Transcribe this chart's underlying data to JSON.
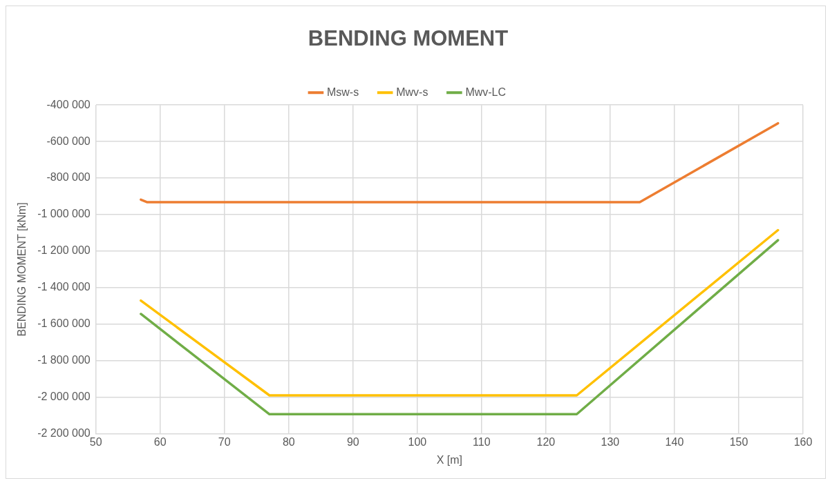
{
  "chart_data": {
    "type": "line",
    "title": "BENDING MOMENT",
    "xlabel": "X [m]",
    "ylabel": "BENDING MOMENT [kNm]",
    "xlim": [
      50,
      160
    ],
    "xticks": [
      50,
      60,
      70,
      80,
      90,
      100,
      110,
      120,
      130,
      140,
      150,
      160
    ],
    "ylim": [
      -2200000,
      -400000
    ],
    "yticks": [
      {
        "value": -400000,
        "label": "-400 000"
      },
      {
        "value": -600000,
        "label": "-600 000"
      },
      {
        "value": -800000,
        "label": "-800 000"
      },
      {
        "value": -1000000,
        "label": "-1 000 000"
      },
      {
        "value": -1200000,
        "label": "-1 200 000"
      },
      {
        "value": -1400000,
        "label": "-1 400 000"
      },
      {
        "value": -1600000,
        "label": "-1 600 000"
      },
      {
        "value": -1800000,
        "label": "-1 800 000"
      },
      {
        "value": -2000000,
        "label": "-2 000 000"
      },
      {
        "value": -2200000,
        "label": "-2 200 000"
      }
    ],
    "grid": true,
    "legend": "top",
    "marker": "none",
    "line_style": "solid",
    "series": [
      {
        "name": "Msw-s",
        "color": "#ed7d31",
        "x": [
          57,
          58,
          134.6,
          156.1
        ],
        "values": [
          -918000,
          -932000,
          -932000,
          -500000
        ]
      },
      {
        "name": "Mwv-s",
        "color": "#ffc000",
        "x": [
          57,
          77,
          124.8,
          156.1
        ],
        "values": [
          -1471000,
          -1990000,
          -1990000,
          -1085000
        ]
      },
      {
        "name": "Mwv-LC",
        "color": "#70ad47",
        "x": [
          57,
          77,
          124.8,
          156.1
        ],
        "values": [
          -1544000,
          -2093000,
          -2093000,
          -1140000
        ]
      }
    ]
  }
}
